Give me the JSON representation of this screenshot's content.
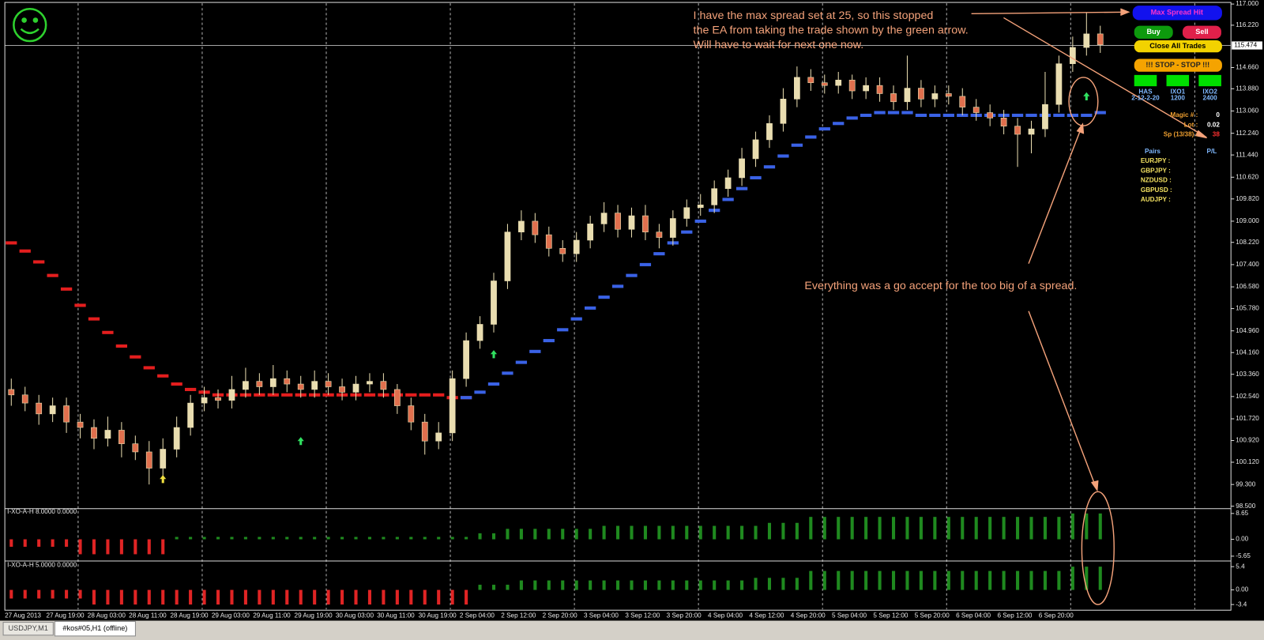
{
  "chart_data": [
    {
      "type": "candlestick",
      "categories": [
        "27 Aug 2013",
        null,
        null,
        "27 Aug 19:00",
        null,
        null,
        "28 Aug 03:00",
        null,
        null,
        "28 Aug 11:00",
        null,
        null,
        "28 Aug 19:00",
        null,
        null,
        "29 Aug 03:00",
        null,
        null,
        "29 Aug 11:00",
        null,
        null,
        "29 Aug 19:00",
        null,
        null,
        "30 Aug 03:00",
        null,
        null,
        "30 Aug 11:00",
        null,
        null,
        "30 Aug 19:00",
        null,
        null,
        "2 Sep 04:00",
        null,
        null,
        "2 Sep 12:00",
        null,
        null,
        "2 Sep 20:00",
        null,
        null,
        "3 Sep 04:00",
        null,
        null,
        "3 Sep 12:00",
        null,
        null,
        "3 Sep 20:00",
        null,
        null,
        "4 Sep 04:00",
        null,
        null,
        "4 Sep 12:00",
        null,
        null,
        "4 Sep 20:00",
        null,
        null,
        "5 Sep 04:00",
        null,
        null,
        "5 Sep 12:00",
        null,
        null,
        "5 Sep 20:00",
        null,
        null,
        "6 Sep 04:00",
        null,
        null,
        "6 Sep 12:00",
        null,
        null,
        "6 Sep 20:00",
        null,
        null,
        null,
        null
      ],
      "open": [
        102.8,
        102.6,
        102.3,
        101.9,
        102.2,
        101.6,
        101.4,
        101.0,
        101.3,
        100.8,
        100.5,
        99.9,
        100.6,
        101.4,
        102.3,
        102.5,
        102.4,
        102.8,
        103.1,
        102.9,
        103.2,
        103.0,
        102.8,
        103.1,
        102.9,
        102.7,
        103.0,
        103.1,
        102.8,
        102.2,
        101.6,
        100.9,
        101.2,
        103.2,
        104.6,
        105.2,
        106.8,
        108.6,
        109.0,
        108.5,
        108.0,
        107.8,
        108.3,
        108.9,
        109.3,
        108.7,
        109.2,
        108.6,
        108.4,
        109.1,
        109.5,
        109.6,
        110.2,
        110.6,
        111.3,
        112.0,
        112.6,
        113.5,
        114.3,
        114.1,
        114.0,
        114.2,
        113.8,
        114.0,
        113.7,
        113.4,
        113.9,
        113.5,
        113.7,
        113.6,
        113.2,
        113.0,
        112.8,
        112.5,
        112.2,
        112.4,
        113.3,
        114.8,
        115.4,
        115.9
      ],
      "high": [
        103.2,
        102.9,
        102.6,
        102.5,
        102.5,
        101.9,
        101.7,
        101.8,
        101.6,
        101.1,
        100.9,
        101.0,
        101.8,
        102.6,
        102.9,
        102.8,
        103.3,
        103.6,
        103.4,
        103.7,
        103.5,
        103.3,
        103.5,
        103.4,
        103.2,
        103.3,
        103.4,
        103.4,
        103.0,
        102.5,
        101.9,
        101.6,
        103.5,
        104.9,
        105.5,
        107.1,
        108.9,
        109.4,
        109.3,
        108.8,
        108.3,
        108.6,
        109.2,
        109.7,
        109.6,
        109.5,
        109.6,
        108.9,
        109.4,
        109.8,
        110.0,
        110.5,
        110.9,
        111.7,
        112.3,
        112.9,
        113.9,
        114.7,
        114.6,
        114.4,
        114.5,
        114.4,
        114.3,
        114.3,
        114.0,
        115.1,
        114.2,
        114.0,
        114.0,
        113.9,
        113.5,
        113.3,
        113.1,
        112.8,
        112.7,
        114.5,
        115.1,
        115.8,
        116.7,
        116.2
      ],
      "low": [
        102.2,
        102.0,
        101.5,
        101.6,
        101.2,
        101.0,
        100.6,
        100.7,
        100.3,
        100.2,
        99.3,
        99.6,
        100.3,
        101.1,
        102.0,
        102.1,
        102.1,
        102.5,
        102.6,
        102.6,
        102.7,
        102.5,
        102.5,
        102.6,
        102.4,
        102.4,
        102.7,
        102.5,
        101.9,
        101.3,
        100.4,
        100.6,
        100.9,
        102.9,
        104.3,
        104.9,
        106.5,
        108.3,
        108.2,
        107.7,
        107.5,
        107.5,
        108.0,
        108.6,
        108.4,
        108.4,
        108.3,
        108.0,
        108.1,
        108.8,
        109.2,
        109.3,
        109.9,
        110.3,
        111.0,
        111.7,
        112.3,
        113.2,
        113.8,
        113.7,
        113.7,
        113.5,
        113.5,
        113.4,
        113.1,
        113.1,
        113.2,
        113.2,
        113.3,
        112.9,
        112.7,
        112.5,
        112.2,
        111.0,
        111.5,
        112.1,
        113.0,
        114.5,
        115.1,
        115.2
      ],
      "close": [
        102.6,
        102.3,
        101.9,
        102.2,
        101.6,
        101.4,
        101.0,
        101.3,
        100.8,
        100.5,
        99.9,
        100.6,
        101.4,
        102.3,
        102.5,
        102.4,
        102.8,
        103.1,
        102.9,
        103.2,
        103.0,
        102.8,
        103.1,
        102.9,
        102.7,
        103.0,
        103.1,
        102.8,
        102.2,
        101.6,
        100.9,
        101.2,
        103.2,
        104.6,
        105.2,
        106.8,
        108.6,
        109.0,
        108.5,
        108.0,
        107.8,
        108.3,
        108.9,
        109.3,
        108.7,
        109.2,
        108.6,
        108.4,
        109.1,
        109.5,
        109.6,
        110.2,
        110.6,
        111.3,
        112.0,
        112.6,
        113.5,
        114.3,
        114.1,
        114.0,
        114.2,
        113.8,
        114.0,
        113.7,
        113.4,
        113.9,
        113.5,
        113.7,
        113.6,
        113.2,
        113.0,
        112.8,
        112.5,
        112.2,
        112.4,
        113.3,
        114.8,
        115.4,
        115.9,
        115.5
      ],
      "up_color": "#e9ddb0",
      "down_color": "#e0704e",
      "series": [
        {
          "color": "#e41e1e",
          "values": [
            108.2,
            107.9,
            107.5,
            107.0,
            106.5,
            105.9,
            105.4,
            104.9,
            104.4,
            104.0,
            103.6,
            103.3,
            103.0,
            102.8,
            102.7,
            102.6,
            102.6,
            102.6,
            102.6,
            102.6,
            102.6,
            102.6,
            102.6,
            102.6,
            102.6,
            102.6,
            102.6,
            102.6,
            102.6,
            102.6,
            102.6,
            102.6,
            102.5,
            102.5,
            null,
            null,
            null,
            null,
            null,
            null,
            null,
            null,
            null,
            null,
            null,
            null,
            null,
            null,
            null,
            null,
            null,
            null,
            null,
            null,
            null,
            null,
            null,
            null,
            null,
            null,
            null,
            null,
            null,
            null,
            null,
            null,
            null,
            null,
            null,
            null,
            null,
            null,
            null,
            null,
            null,
            null,
            null,
            null,
            null,
            null
          ]
        },
        {
          "color": "#3a62e6",
          "values": [
            null,
            null,
            null,
            null,
            null,
            null,
            null,
            null,
            null,
            null,
            null,
            null,
            null,
            null,
            null,
            null,
            null,
            null,
            null,
            null,
            null,
            null,
            null,
            null,
            null,
            null,
            null,
            null,
            null,
            null,
            null,
            null,
            null,
            102.5,
            102.7,
            103.0,
            103.4,
            103.8,
            104.2,
            104.6,
            105.0,
            105.4,
            105.8,
            106.2,
            106.6,
            107.0,
            107.4,
            107.8,
            108.2,
            108.6,
            109.0,
            109.4,
            109.8,
            110.2,
            110.6,
            111.0,
            111.4,
            111.8,
            112.1,
            112.4,
            112.6,
            112.8,
            112.9,
            113.0,
            113.0,
            113.0,
            112.9,
            112.9,
            112.9,
            112.9,
            112.9,
            112.9,
            112.9,
            112.9,
            112.9,
            112.9,
            112.9,
            112.9,
            112.9,
            113.0
          ]
        }
      ],
      "arrows": {
        "x": [
          11,
          21,
          35,
          78
        ],
        "values": [
          99.5,
          100.9,
          104.1,
          113.6
        ],
        "colors": [
          "#f0e040",
          "#30e060",
          "#30e060",
          "#30e060"
        ]
      },
      "ylim": [
        98.5,
        117.0
      ],
      "yticks": [
        {
          "value": 117.0,
          "label": "117.000"
        },
        {
          "value": 116.22,
          "label": "116.220"
        },
        {
          "value": 114.66,
          "label": "114.660"
        },
        {
          "value": 113.88,
          "label": "113.880"
        },
        {
          "value": 113.06,
          "label": "113.060"
        },
        {
          "value": 112.24,
          "label": "112.240"
        },
        {
          "value": 111.44,
          "label": "111.440"
        },
        {
          "value": 110.62,
          "label": "110.620"
        },
        {
          "value": 109.82,
          "label": "109.820"
        },
        {
          "value": 109.0,
          "label": "109.000"
        },
        {
          "value": 108.22,
          "label": "108.220"
        },
        {
          "value": 107.4,
          "label": "107.400"
        },
        {
          "value": 106.58,
          "label": "106.580"
        },
        {
          "value": 105.78,
          "label": "105.780"
        },
        {
          "value": 104.96,
          "label": "104.960"
        },
        {
          "value": 104.16,
          "label": "104.160"
        },
        {
          "value": 103.36,
          "label": "103.360"
        },
        {
          "value": 102.54,
          "label": "102.540"
        },
        {
          "value": 101.72,
          "label": "101.720"
        },
        {
          "value": 100.92,
          "label": "100.920"
        },
        {
          "value": 100.12,
          "label": "100.120"
        },
        {
          "value": 99.3,
          "label": "99.300"
        },
        {
          "value": 98.5,
          "label": "98.500"
        }
      ],
      "current_price": 115.474,
      "annotations": [
        "I have the max spread set at 25, so this stopped",
        "the EA from taking the trade shown by the green arrow.",
        "Will have to wait for next one now.",
        "Everything was a go accept for the too big of a spread."
      ]
    },
    {
      "type": "bar",
      "title": "I-XO-A-H 8.0000 0.0000",
      "values": [
        -2.5,
        -2.5,
        -2.5,
        -2.5,
        -2.5,
        -5.0,
        -5.0,
        -5.0,
        -5.0,
        -5.0,
        -5.0,
        -5.0,
        0.8,
        0.8,
        0.8,
        0.8,
        0.8,
        0.8,
        0.8,
        0.8,
        0.8,
        0.8,
        0.8,
        0.8,
        0.8,
        0.8,
        0.8,
        0.8,
        0.8,
        0.8,
        0.8,
        0.8,
        0.8,
        0.8,
        2.0,
        2.0,
        3.5,
        3.5,
        3.5,
        3.5,
        3.5,
        3.5,
        3.5,
        4.5,
        4.5,
        4.5,
        4.5,
        4.5,
        4.5,
        4.5,
        4.5,
        4.5,
        4.5,
        4.5,
        4.5,
        5.5,
        5.5,
        5.5,
        7.5,
        7.5,
        7.5,
        7.5,
        7.5,
        7.5,
        7.5,
        7.5,
        7.5,
        7.5,
        7.5,
        7.5,
        7.5,
        7.5,
        7.5,
        7.5,
        7.5,
        7.5,
        7.5,
        8.65,
        8.65,
        8.65
      ],
      "up_color": "#1f8a1f",
      "down_color": "#e02424",
      "ylim": [
        -5.65,
        8.65
      ],
      "yticks": [
        8.65,
        {
          "value": 0,
          "label": "0.00"
        },
        -5.65
      ]
    },
    {
      "type": "bar",
      "title": "I-XO-A-H 5.0000 0.0000",
      "values": [
        -2.0,
        -2.0,
        -2.0,
        -2.0,
        -2.0,
        -2.0,
        -3.4,
        -3.4,
        -3.4,
        -3.4,
        -3.4,
        -3.4,
        -3.4,
        -3.4,
        -3.4,
        -3.4,
        -3.4,
        -3.4,
        -3.4,
        -3.4,
        -3.4,
        -3.4,
        -3.4,
        -3.4,
        -3.4,
        -3.4,
        -3.4,
        -3.4,
        -3.4,
        -3.4,
        -3.4,
        -3.4,
        -3.4,
        -3.4,
        1.2,
        1.2,
        1.2,
        2.2,
        2.2,
        2.2,
        2.2,
        2.2,
        2.2,
        2.2,
        2.2,
        2.2,
        2.2,
        2.2,
        2.2,
        2.2,
        2.2,
        2.2,
        2.2,
        2.2,
        2.8,
        2.8,
        2.8,
        2.8,
        4.4,
        4.4,
        4.4,
        4.4,
        4.4,
        4.4,
        4.4,
        4.4,
        4.4,
        4.4,
        4.4,
        4.4,
        4.4,
        4.4,
        4.4,
        4.4,
        4.4,
        4.4,
        4.4,
        5.4,
        5.4,
        5.4
      ],
      "up_color": "#1f8a1f",
      "down_color": "#e02424",
      "ylim": [
        -3.4,
        5.4
      ],
      "yticks": [
        5.4,
        {
          "value": 0,
          "label": "0.00"
        },
        -3.4
      ]
    }
  ],
  "ea_panel": {
    "max_spread": "Max Spread Hit",
    "buy": "Buy",
    "sell": "Sell",
    "close_all": "Close All Trades",
    "stop": "!!! STOP  -  STOP !!!",
    "indicators": [
      {
        "name": "HAS",
        "value": "2-12-2-20"
      },
      {
        "name": "IXO1",
        "value": "1200"
      },
      {
        "name": "IXO2",
        "value": "2400"
      }
    ],
    "magic_label": "Magic # :",
    "magic": 0,
    "lot_label": "Lot :",
    "lot": 0.02,
    "spread_label": "Sp (13/38) :",
    "spread": 38,
    "pairs_label": "Pairs",
    "pl_label": "P/L",
    "pairs": [
      "EURJPY :",
      "GBPJPY :",
      "NZDUSD :",
      "GBPUSD :",
      "AUDJPY :"
    ]
  },
  "tabs": [
    "USDJPY,M1",
    "#kos#05,H1 (offline)"
  ]
}
